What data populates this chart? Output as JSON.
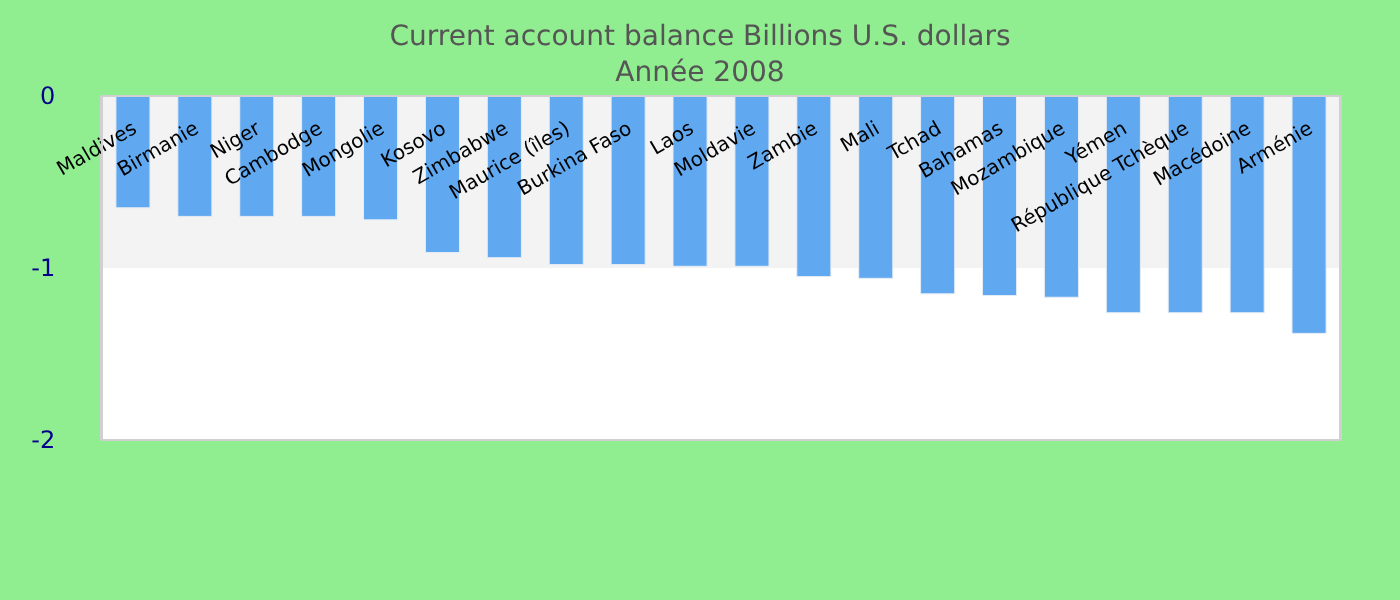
{
  "chart_data": {
    "type": "bar",
    "title": "Current account balance Billions U.S. dollars\nAnnée 2008",
    "categories": [
      "Maldives",
      "Birmanie",
      "Niger",
      "Cambodge",
      "Mongolie",
      "Kosovo",
      "Zimbabwe",
      "Maurice (îles)",
      "Burkina Faso",
      "Laos",
      "Moldavie",
      "Zambie",
      "Mali",
      "Tchad",
      "Bahamas",
      "Mozambique",
      "Yémen",
      "République Tchèque",
      "Macédoine",
      "Arménie"
    ],
    "values": [
      -0.65,
      -0.7,
      -0.7,
      -0.7,
      -0.72,
      -0.91,
      -0.94,
      -0.98,
      -0.98,
      -0.99,
      -0.99,
      -1.05,
      -1.06,
      -1.15,
      -1.16,
      -1.17,
      -1.26,
      -1.26,
      -1.26,
      -1.38
    ],
    "color": "#60a8f0",
    "ylim": [
      -2,
      0
    ],
    "yticks": [
      0,
      -1,
      -2
    ],
    "bands": [
      {
        "axis": "y",
        "from": 0,
        "to": -1,
        "color": "#f3f3f3"
      }
    ]
  }
}
